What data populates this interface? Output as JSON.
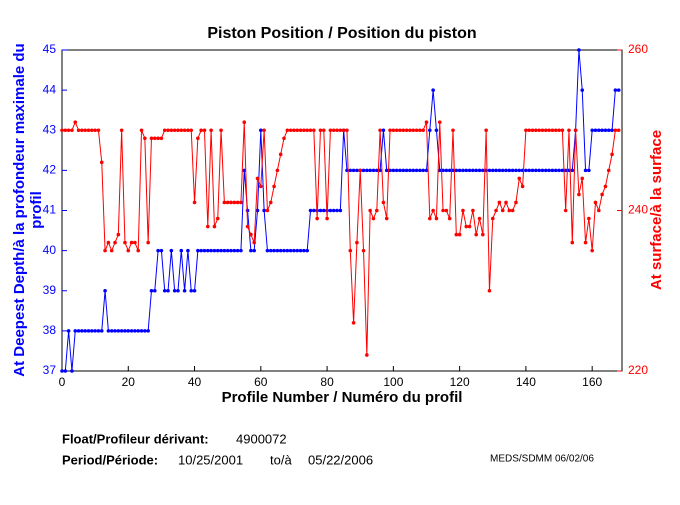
{
  "chart_data": {
    "type": "line",
    "title": "Piston Position / Position du piston",
    "xlabel": "Profile Number / Numéro du profil",
    "ylabel": [
      "At Deepest Depth/à la profondeur maximale du",
      "profil"
    ],
    "y2label": "At surface/à la surface",
    "xlim": [
      0,
      169
    ],
    "xticks": [
      0,
      20,
      40,
      60,
      80,
      100,
      120,
      140,
      160
    ],
    "ylim": [
      37,
      45
    ],
    "yticks": [
      37,
      38,
      39,
      40,
      41,
      42,
      43,
      44,
      45
    ],
    "y2lim": [
      220,
      260
    ],
    "y2ticks": [
      220,
      240,
      260
    ],
    "x": [
      0,
      1,
      2,
      3,
      4,
      5,
      6,
      7,
      8,
      9,
      10,
      11,
      12,
      13,
      14,
      15,
      16,
      17,
      18,
      19,
      20,
      21,
      22,
      23,
      24,
      25,
      26,
      27,
      28,
      29,
      30,
      31,
      32,
      33,
      34,
      35,
      36,
      37,
      38,
      39,
      40,
      41,
      42,
      43,
      44,
      45,
      46,
      47,
      48,
      49,
      50,
      51,
      52,
      53,
      54,
      55,
      56,
      57,
      58,
      59,
      60,
      61,
      62,
      63,
      64,
      65,
      66,
      67,
      68,
      69,
      70,
      71,
      72,
      73,
      74,
      75,
      76,
      77,
      78,
      79,
      80,
      81,
      82,
      83,
      84,
      85,
      86,
      87,
      88,
      89,
      90,
      91,
      92,
      93,
      94,
      95,
      96,
      97,
      98,
      99,
      100,
      101,
      102,
      103,
      104,
      105,
      106,
      107,
      108,
      109,
      110,
      111,
      112,
      113,
      114,
      115,
      116,
      117,
      118,
      119,
      120,
      121,
      122,
      123,
      124,
      125,
      126,
      127,
      128,
      129,
      130,
      131,
      132,
      133,
      134,
      135,
      136,
      137,
      138,
      139,
      140,
      141,
      142,
      143,
      144,
      145,
      146,
      147,
      148,
      149,
      150,
      151,
      152,
      153,
      154,
      155,
      156,
      157,
      158,
      159,
      160,
      161,
      162,
      163,
      164,
      165,
      166,
      167,
      168
    ],
    "series": [
      {
        "name": "At Deepest Depth",
        "color": "#0000ff",
        "axis": "y",
        "values": [
          37,
          37,
          38,
          37,
          38,
          38,
          38,
          38,
          38,
          38,
          38,
          38,
          38,
          39,
          38,
          38,
          38,
          38,
          38,
          38,
          38,
          38,
          38,
          38,
          38,
          38,
          38,
          39,
          39,
          40,
          40,
          39,
          39,
          40,
          39,
          39,
          40,
          39,
          40,
          39,
          39,
          40,
          40,
          40,
          40,
          40,
          40,
          40,
          40,
          40,
          40,
          40,
          40,
          40,
          40,
          42,
          41,
          40,
          40,
          41,
          43,
          41,
          40,
          40,
          40,
          40,
          40,
          40,
          40,
          40,
          40,
          40,
          40,
          40,
          40,
          41,
          41,
          41,
          41,
          41,
          41,
          41,
          41,
          41,
          41,
          43,
          42,
          42,
          42,
          42,
          42,
          42,
          42,
          42,
          42,
          42,
          42,
          43,
          42,
          42,
          42,
          42,
          42,
          42,
          42,
          42,
          42,
          42,
          42,
          42,
          42,
          43,
          44,
          43,
          42,
          42,
          42,
          42,
          42,
          42,
          42,
          42,
          42,
          42,
          42,
          42,
          42,
          42,
          42,
          42,
          42,
          42,
          42,
          42,
          42,
          42,
          42,
          42,
          42,
          42,
          42,
          42,
          42,
          42,
          42,
          42,
          42,
          42,
          42,
          42,
          42,
          42,
          42,
          42,
          42,
          43,
          45,
          44,
          42,
          42,
          43,
          43,
          43,
          43,
          43,
          43,
          43,
          44,
          44
        ]
      },
      {
        "name": "At surface",
        "color": "#ff0000",
        "axis": "y2",
        "values": [
          250,
          250,
          250,
          250,
          251,
          250,
          250,
          250,
          250,
          250,
          250,
          250,
          246,
          235,
          236,
          235,
          236,
          237,
          250,
          236,
          235,
          236,
          236,
          235,
          250,
          249,
          236,
          249,
          249,
          249,
          249,
          250,
          250,
          250,
          250,
          250,
          250,
          250,
          250,
          250,
          241,
          249,
          250,
          250,
          238,
          250,
          238,
          239,
          250,
          241,
          241,
          241,
          241,
          241,
          241,
          251,
          238,
          237,
          236,
          244,
          243,
          250,
          240,
          241,
          243,
          245,
          247,
          249,
          250,
          250,
          250,
          250,
          250,
          250,
          250,
          250,
          250,
          239,
          250,
          250,
          239,
          250,
          250,
          250,
          250,
          250,
          250,
          235,
          226,
          236,
          245,
          235,
          222,
          240,
          239,
          240,
          250,
          241,
          239,
          250,
          250,
          250,
          250,
          250,
          250,
          250,
          250,
          250,
          250,
          250,
          251,
          239,
          240,
          239,
          251,
          240,
          240,
          239,
          250,
          237,
          237,
          240,
          238,
          238,
          240,
          237,
          239,
          237,
          250,
          230,
          239,
          240,
          241,
          240,
          241,
          240,
          240,
          241,
          244,
          243,
          250,
          250,
          250,
          250,
          250,
          250,
          250,
          250,
          250,
          250,
          250,
          250,
          240,
          250,
          236,
          250,
          242,
          244,
          236,
          239,
          235,
          241,
          240,
          242,
          243,
          245,
          247,
          250,
          250
        ]
      }
    ],
    "footer": {
      "float_label": "Float/Profileur dérivant:",
      "float_id": "4900072",
      "period_label": "Period/Période:",
      "start": "10/25/2001",
      "to": "to/à",
      "end": "05/22/2006",
      "credit": "MEDS/SDMM  06/02/06"
    }
  }
}
